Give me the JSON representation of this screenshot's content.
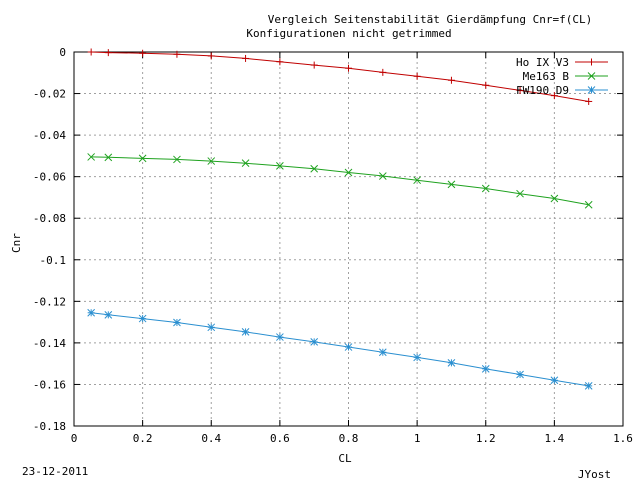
{
  "chart_data": {
    "type": "line",
    "title_line1": "Vergleich Seitenstabilität   Gierdämpfung Cnr=f(CL)",
    "title_line2": "Konfigurationen nicht getrimmed",
    "xlabel": "CL",
    "ylabel": "Cnr",
    "xlim": [
      0,
      1.6
    ],
    "ylim": [
      -0.18,
      0
    ],
    "xticks": [
      0,
      0.2,
      0.4,
      0.6,
      0.8,
      1,
      1.2,
      1.4,
      1.6
    ],
    "xtick_labels": [
      "0",
      "0.2",
      "0.4",
      "0.6",
      "0.8",
      "1",
      "1.2",
      "1.4",
      "1.6"
    ],
    "yticks": [
      0,
      -0.02,
      -0.04,
      -0.06,
      -0.08,
      -0.1,
      -0.12,
      -0.14,
      -0.16,
      -0.18
    ],
    "ytick_labels": [
      "0",
      "-0.02",
      "-0.04",
      "-0.06",
      "-0.08",
      "-0.1",
      "-0.12",
      "-0.14",
      "-0.16",
      "-0.18"
    ],
    "grid": true,
    "legend_position": "top-right",
    "x": [
      0.05,
      0.1,
      0.2,
      0.3,
      0.4,
      0.5,
      0.6,
      0.7,
      0.8,
      0.9,
      1.0,
      1.1,
      1.2,
      1.3,
      1.4,
      1.5
    ],
    "series": [
      {
        "name": "Ho IX V3",
        "color": "#c00000",
        "marker": "plus",
        "values": [
          0.0,
          -0.0003,
          -0.0006,
          -0.0011,
          -0.0019,
          -0.0031,
          -0.0047,
          -0.0063,
          -0.0078,
          -0.0098,
          -0.0117,
          -0.0136,
          -0.016,
          -0.0185,
          -0.021,
          -0.0238
        ]
      },
      {
        "name": "Me163 B",
        "color": "#1fa21f",
        "marker": "x",
        "values": [
          -0.0505,
          -0.0507,
          -0.0512,
          -0.0517,
          -0.0525,
          -0.0535,
          -0.0548,
          -0.0562,
          -0.058,
          -0.0597,
          -0.0617,
          -0.0637,
          -0.0657,
          -0.0682,
          -0.0705,
          -0.0735
        ]
      },
      {
        "name": "FW190 D9",
        "color": "#2a8fd0",
        "marker": "star",
        "values": [
          -0.1255,
          -0.1265,
          -0.1283,
          -0.1302,
          -0.1325,
          -0.1347,
          -0.1372,
          -0.1395,
          -0.142,
          -0.1445,
          -0.147,
          -0.1496,
          -0.1525,
          -0.1552,
          -0.158,
          -0.1607
        ]
      }
    ]
  },
  "footer": {
    "date": "23-12-2011",
    "author": "JYost"
  }
}
